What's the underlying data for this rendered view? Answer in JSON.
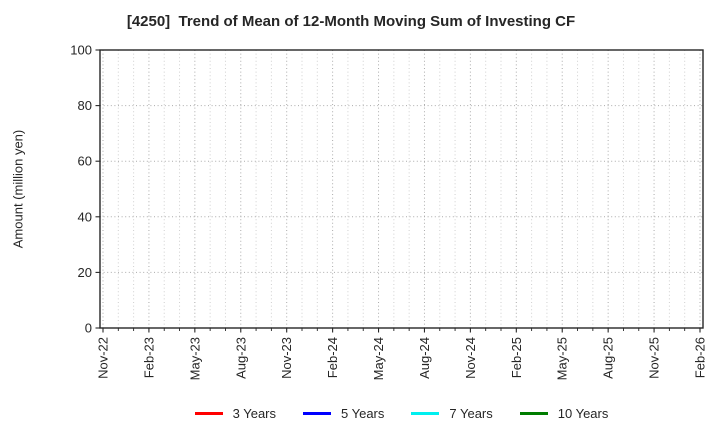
{
  "chart_data": {
    "type": "line",
    "title": "[4250]  Trend of Mean of 12-Month Moving Sum of Investing CF",
    "ylabel": "Amount (million yen)",
    "xlabel": "",
    "ylim": [
      0,
      100
    ],
    "yticks": [
      0,
      20,
      40,
      60,
      80,
      100
    ],
    "x_major_labels": [
      "Nov-22",
      "Feb-23",
      "May-23",
      "Aug-23",
      "Nov-23",
      "Feb-24",
      "May-24",
      "Aug-24",
      "Nov-24",
      "Feb-25",
      "May-25",
      "Aug-25",
      "Nov-25",
      "Feb-26"
    ],
    "x_monthly_positions": 40,
    "x_minor_per_major": 3,
    "grid": true,
    "legend_position": "bottom-center",
    "axis_color": "#262626",
    "grid_major_color": "#ababab",
    "grid_minor_color": "#cfcfcf",
    "series": [
      {
        "name": "3 Years",
        "color": "#ff0000",
        "values": []
      },
      {
        "name": "5 Years",
        "color": "#0000ff",
        "values": []
      },
      {
        "name": "7 Years",
        "color": "#00efef",
        "values": []
      },
      {
        "name": "10 Years",
        "color": "#007d00",
        "values": []
      }
    ]
  }
}
